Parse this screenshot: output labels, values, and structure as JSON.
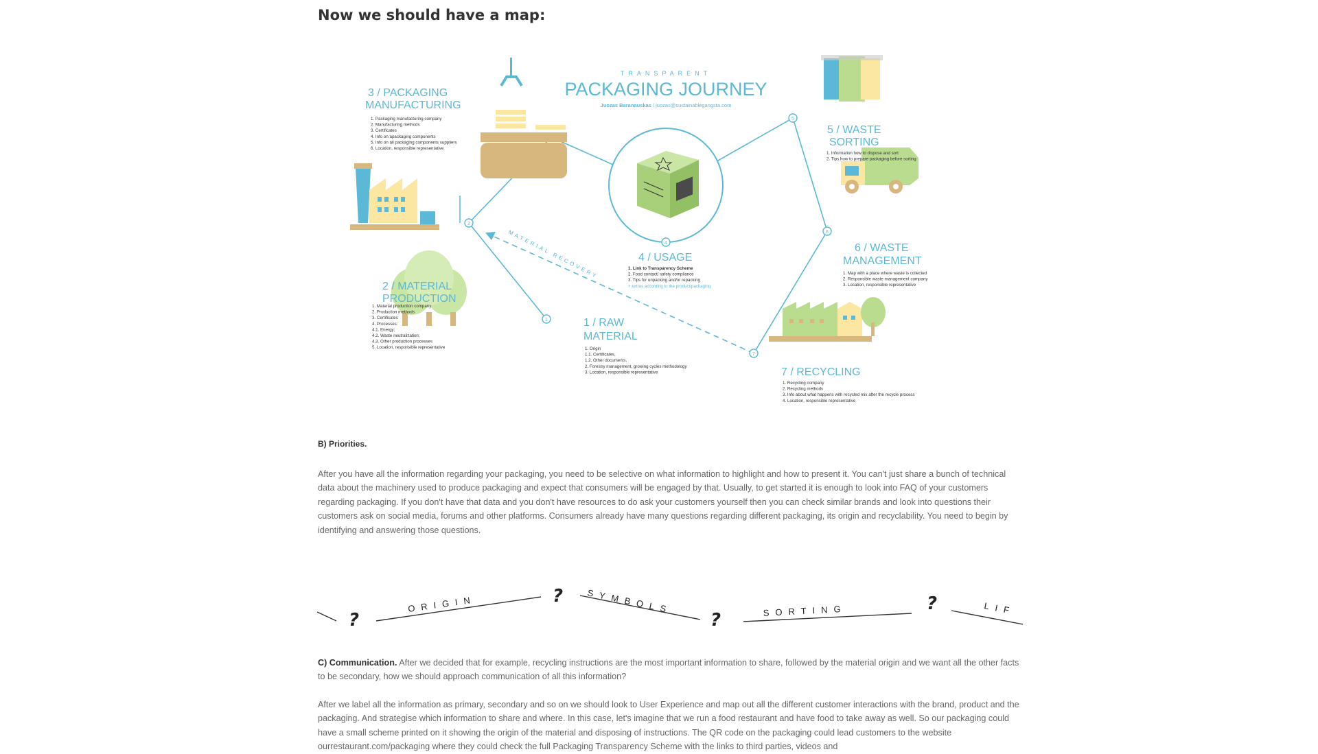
{
  "heading": "Now we should have a map:",
  "infographic": {
    "kicker": "TRANSPARENT",
    "title": "PACKAGING JOURNEY",
    "author": "Juozas Baranauskas",
    "author_sep": " / ",
    "email": "juozas@sustainablegangsta.com",
    "arc_label": "MATERIAL RECOVERY",
    "stages": {
      "packaging": {
        "num": "3",
        "title1": "3 / PACKAGING",
        "title2": "MANUFACTURING",
        "items": [
          "1. Packaging manufacturing company",
          "2. Manufacturing methods",
          "3. Certificates",
          "4. Info on apackaging components",
          "5. Info on all packaging components suppliers",
          "6. Location, responsible representative"
        ]
      },
      "material": {
        "num": "2",
        "title1": "2 / MATERIAL",
        "title2": "PRODUCTION",
        "items": [
          "1. Material production company",
          "2. Production methods",
          "3. Certificates",
          "4. Processes:",
          "   4.1. Energy;",
          "   4.2. Waste neutralization;",
          "   4.3. Other production processes",
          "5. Location, responsible representative"
        ]
      },
      "raw": {
        "num": "1",
        "title1": "1 / RAW",
        "title2": "MATERIAL",
        "items": [
          "1. Origin",
          "   1.1. Certificates,",
          "   1.2. Other documents,",
          "2. Forestry management, growing cycles methodology",
          "3. Location, responsible representative"
        ]
      },
      "usage": {
        "num": "4",
        "title1": "4 / USAGE",
        "items": [
          "1. Link to Transparency Scheme",
          "2. Food contact/ safety compliance",
          "3. Tips for unpacking and/or repacking",
          "+ extras according to the product/packaging"
        ]
      },
      "sorting": {
        "num": "5",
        "title1": "5 / WASTE",
        "title2": "SORTING",
        "items": [
          "1. Information how to dispose and sort",
          "2. Tips how to prepare packaging before sorting"
        ]
      },
      "waste": {
        "num": "6",
        "title1": "6 / WASTE",
        "title2": "MANAGEMENT",
        "items": [
          "1. Map with a place where waste is collected",
          "2. Responsible waste management company",
          "3. Location, responsible representative"
        ]
      },
      "recycling": {
        "num": "7",
        "title1": "7 / RECYCLING",
        "items": [
          "1. Recycling company",
          "2. Recycling methods",
          "3. Info about what happens with recycled mix after the recycle process",
          "4. Location, responsible representative"
        ]
      }
    },
    "colors": {
      "accent": "#5bb8d6",
      "green": "#b9dc8f",
      "yellow": "#fbe7a1",
      "tan": "#d8b77f",
      "blue": "#5bb8d6"
    }
  },
  "priorities": {
    "title": "B) Priorities.",
    "paragraph": "After you have all the information regarding your packaging, you need to be selective on what information to highlight and how to present it. You can't just share a bunch of technical data about the machinery used to produce packaging and expect that consumers will be engaged by that. Usually, to get started it is enough to look into FAQ of your customers regarding packaging. If you don't have that data and you don't have resources to do ask your customers yourself then you can check similar brands and look into questions their customers ask on social media, forums and other platforms. Consumers already have many questions regarding different packaging, its origin and recyclability. You need to begin by identifying and answering those questions."
  },
  "wordstrip": {
    "words": [
      "ORIGIN",
      "SYMBOLS",
      "SORTING",
      "LIF"
    ],
    "mark": "?"
  },
  "communication": {
    "title": "C) Communication.",
    "paragraph": " After we decided that for example, recycling instructions are the most important information to share, followed by the material origin and we want all the other facts to be secondary, how we should approach communication of all this information?",
    "paragraph2": "After we label all the information as primary, secondary and so on we should look to User Experience and map out all the different customer interactions with the brand, product and the packaging. And strategise which information to share and where. In this case, let's imagine that we run a food restaurant and have food to take away as well. So our packaging could have a small scheme printed on it showing the origin of the material and disposing of instructions. The QR code on the packaging could lead customers to the website ourrestaurant.com/packaging where they could check the full Packaging Transparency Scheme with the links to third parties, videos and"
  }
}
